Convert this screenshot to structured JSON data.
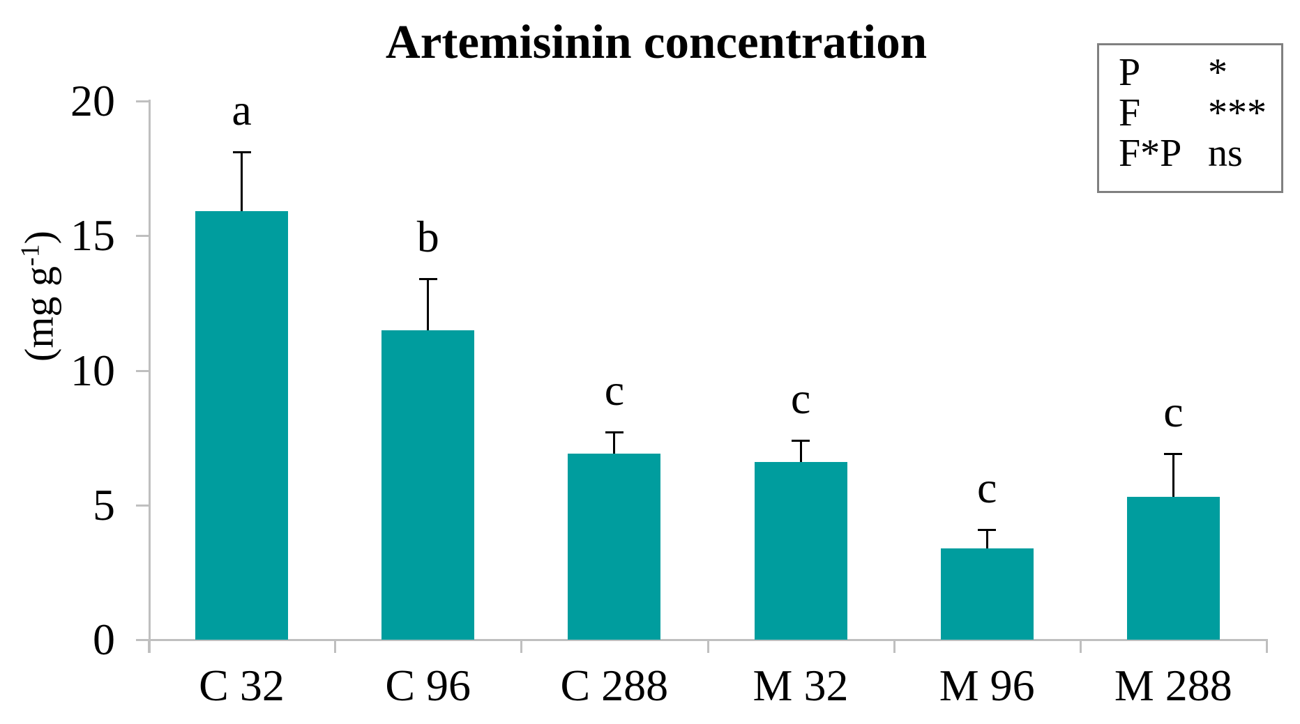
{
  "chart_data": {
    "type": "bar",
    "title": "Artemisinin concentration",
    "ylabel": "(mg g-1)",
    "ylabel_parts": {
      "prefix": "(mg g",
      "superscript": "-1",
      "suffix": ")"
    },
    "xlabel": "",
    "categories": [
      "C 32",
      "C 96",
      "C 288",
      "M 32",
      "M 96",
      "M 288"
    ],
    "values": [
      15.9,
      11.5,
      6.9,
      6.6,
      3.4,
      5.3
    ],
    "error_upper": [
      2.2,
      1.9,
      0.8,
      0.8,
      0.7,
      1.6
    ],
    "sig_letters": [
      "a",
      "b",
      "c",
      "c",
      "c",
      "c"
    ],
    "ylim": [
      0,
      20
    ],
    "yticks": [
      0,
      5,
      10,
      15,
      20
    ],
    "grid": false,
    "legend_position": "top-right",
    "bar_color": "#009D9E",
    "axis_color": "#BFBFBF",
    "error_bar_color": "#000000"
  },
  "legend": {
    "rows": [
      {
        "factor": "P",
        "value": "*"
      },
      {
        "factor": "F",
        "value": "***"
      },
      {
        "factor": "F*P",
        "value": "ns"
      }
    ]
  }
}
